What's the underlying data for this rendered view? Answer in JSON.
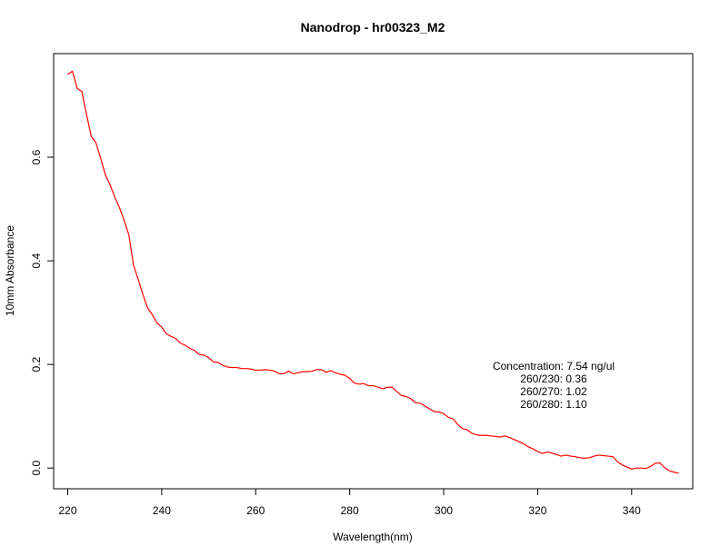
{
  "chart_data": {
    "type": "line",
    "title": "Nanodrop - hr00323_M2",
    "xlabel": "Wavelength(nm)",
    "ylabel": "10mm Absorbance",
    "xlim": [
      217,
      353
    ],
    "ylim": [
      -0.04,
      0.8
    ],
    "xticks": [
      220,
      240,
      260,
      280,
      300,
      320,
      340
    ],
    "xtick_labels": [
      "220",
      "240",
      "260",
      "280",
      "300",
      "320",
      "340"
    ],
    "yticks": [
      0.0,
      0.2,
      0.4,
      0.6
    ],
    "ytick_labels": [
      "0.0",
      "0.2",
      "0.4",
      "0.6"
    ],
    "grid": false,
    "line_color": "#ff0000",
    "annotations": [
      "Concentration: 7.54 ng/ul",
      "260/230: 0.36",
      "260/270: 1.02",
      "260/280: 1.10"
    ],
    "x": [
      220,
      221,
      222,
      223,
      224,
      225,
      226,
      227,
      228,
      229,
      230,
      231,
      232,
      233,
      234,
      235,
      236,
      237,
      238,
      239,
      240,
      241,
      242,
      243,
      244,
      245,
      246,
      247,
      248,
      249,
      250,
      251,
      252,
      253,
      254,
      255,
      256,
      257,
      258,
      259,
      260,
      261,
      262,
      263,
      264,
      265,
      266,
      267,
      268,
      269,
      270,
      271,
      272,
      273,
      274,
      275,
      276,
      277,
      278,
      279,
      280,
      281,
      282,
      283,
      284,
      285,
      286,
      287,
      288,
      289,
      290,
      291,
      292,
      293,
      294,
      295,
      296,
      297,
      298,
      299,
      300,
      301,
      302,
      303,
      304,
      305,
      306,
      307,
      308,
      309,
      310,
      311,
      312,
      313,
      314,
      315,
      316,
      317,
      318,
      319,
      320,
      321,
      322,
      323,
      324,
      325,
      326,
      327,
      328,
      329,
      330,
      331,
      332,
      333,
      334,
      335,
      336,
      337,
      338,
      339,
      340,
      341,
      342,
      343,
      344,
      345,
      346,
      347,
      348,
      349,
      350
    ],
    "y": [
      0.76,
      0.766,
      0.733,
      0.727,
      0.683,
      0.64,
      0.628,
      0.598,
      0.566,
      0.547,
      0.523,
      0.503,
      0.478,
      0.45,
      0.392,
      0.364,
      0.335,
      0.309,
      0.296,
      0.28,
      0.272,
      0.259,
      0.254,
      0.25,
      0.241,
      0.237,
      0.231,
      0.227,
      0.219,
      0.218,
      0.213,
      0.205,
      0.204,
      0.198,
      0.195,
      0.194,
      0.194,
      0.192,
      0.192,
      0.191,
      0.189,
      0.189,
      0.19,
      0.189,
      0.187,
      0.182,
      0.182,
      0.187,
      0.182,
      0.184,
      0.186,
      0.186,
      0.187,
      0.19,
      0.19,
      0.185,
      0.188,
      0.184,
      0.181,
      0.179,
      0.173,
      0.164,
      0.162,
      0.163,
      0.159,
      0.159,
      0.156,
      0.153,
      0.156,
      0.156,
      0.148,
      0.14,
      0.138,
      0.134,
      0.126,
      0.125,
      0.12,
      0.114,
      0.109,
      0.108,
      0.105,
      0.098,
      0.095,
      0.084,
      0.076,
      0.074,
      0.067,
      0.064,
      0.063,
      0.063,
      0.062,
      0.061,
      0.06,
      0.062,
      0.059,
      0.055,
      0.051,
      0.047,
      0.041,
      0.037,
      0.032,
      0.028,
      0.031,
      0.029,
      0.026,
      0.023,
      0.025,
      0.023,
      0.022,
      0.02,
      0.019,
      0.02,
      0.023,
      0.025,
      0.024,
      0.023,
      0.022,
      0.012,
      0.006,
      0.002,
      -0.002,
      0.0,
      0.0,
      -0.001,
      0.003,
      0.009,
      0.01,
      0.001,
      -0.005,
      -0.008,
      -0.01
    ]
  }
}
